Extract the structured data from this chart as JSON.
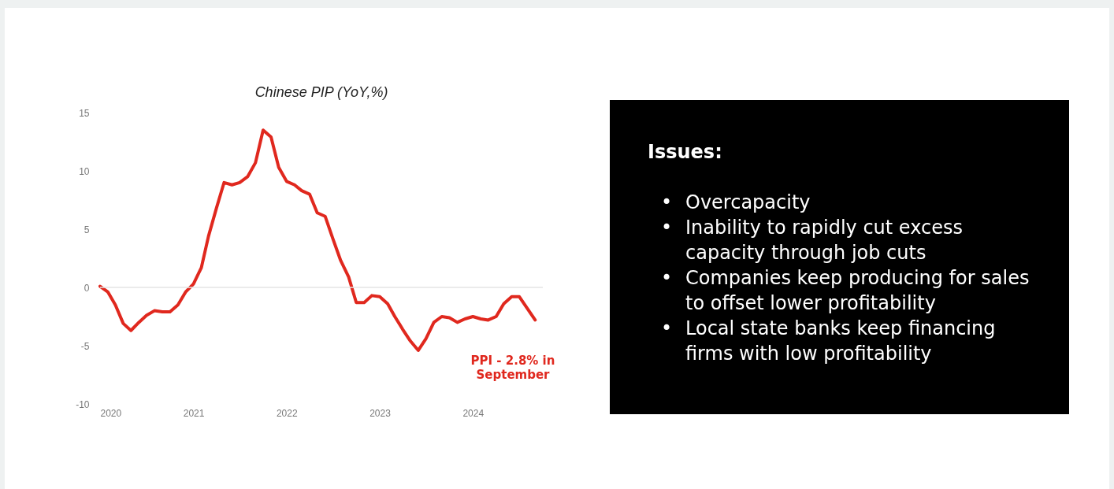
{
  "chart_data": [
    {
      "type": "line",
      "title": "Chinese PIP (YoY,%)",
      "x": [
        "2020-01",
        "2020-02",
        "2020-03",
        "2020-04",
        "2020-05",
        "2020-06",
        "2020-07",
        "2020-08",
        "2020-09",
        "2020-10",
        "2020-11",
        "2020-12",
        "2021-01",
        "2021-02",
        "2021-03",
        "2021-04",
        "2021-05",
        "2021-06",
        "2021-07",
        "2021-08",
        "2021-09",
        "2021-10",
        "2021-11",
        "2021-12",
        "2022-01",
        "2022-02",
        "2022-03",
        "2022-04",
        "2022-05",
        "2022-06",
        "2022-07",
        "2022-08",
        "2022-09",
        "2022-10",
        "2022-11",
        "2022-12",
        "2023-01",
        "2023-02",
        "2023-03",
        "2023-04",
        "2023-05",
        "2023-06",
        "2023-07",
        "2023-08",
        "2023-09",
        "2023-10",
        "2023-11",
        "2023-12",
        "2024-01",
        "2024-02",
        "2024-03",
        "2024-04",
        "2024-05",
        "2024-06",
        "2024-07",
        "2024-08",
        "2024-09"
      ],
      "series": [
        {
          "color": "#e0281e",
          "values": [
            0.1,
            -0.4,
            -1.5,
            -3.1,
            -3.7,
            -3.0,
            -2.4,
            -2.0,
            -2.1,
            -2.1,
            -1.5,
            -0.4,
            0.3,
            1.7,
            4.4,
            6.8,
            9.0,
            8.8,
            9.0,
            9.5,
            10.7,
            13.5,
            12.9,
            10.3,
            9.1,
            8.8,
            8.3,
            8.0,
            6.4,
            6.1,
            4.2,
            2.3,
            0.9,
            -1.3,
            -1.3,
            -0.7,
            -0.8,
            -1.4,
            -2.5,
            -3.6,
            -4.6,
            -5.4,
            -4.4,
            -3.0,
            -2.5,
            -2.6,
            -3.0,
            -2.7,
            -2.5,
            -2.7,
            -2.8,
            -2.5,
            -1.4,
            -0.8,
            -0.8,
            -1.8,
            -2.8
          ]
        }
      ],
      "xlim": [
        "2020-01-01",
        "2024-10-01"
      ],
      "xticks": [
        "2020",
        "2021",
        "2022",
        "2023",
        "2024"
      ],
      "ylim": [
        -10,
        15
      ],
      "yticks": [
        -10,
        -5,
        0,
        5,
        10,
        15
      ],
      "ref_lines": [
        {
          "axis": "y",
          "value": 0,
          "color": "#e4e4e4"
        }
      ],
      "annotations": [
        "PPI - 2.8% in\nSeptember"
      ]
    },
    {
      "type": "other",
      "title": "Issues:",
      "annotations": [
        "• Overcapacity",
        "• Inability to rapidly cut excess capacity through job cuts",
        "• Companies keep producing for sales to offset lower profitability",
        "• Local state banks keep financing firms with low profitability"
      ]
    }
  ]
}
